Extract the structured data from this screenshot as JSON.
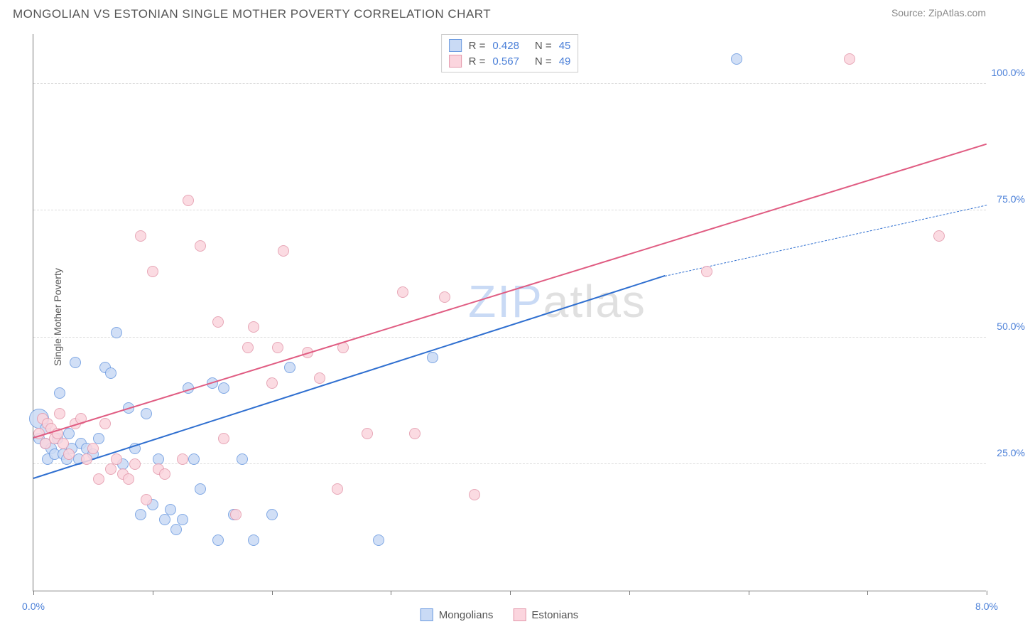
{
  "title": "MONGOLIAN VS ESTONIAN SINGLE MOTHER POVERTY CORRELATION CHART",
  "source": "Source: ZipAtlas.com",
  "ylabel": "Single Mother Poverty",
  "watermark_a": "ZIP",
  "watermark_b": "atlas",
  "watermark_color_a": "#c9daf5",
  "watermark_color_b": "#e0e0e0",
  "xlim": [
    0,
    8
  ],
  "ylim": [
    0,
    110
  ],
  "xticks": [
    0,
    1,
    2,
    3,
    4,
    5,
    6,
    7,
    8
  ],
  "xtick_labels": {
    "0": "0.0%",
    "8": "8.0%"
  },
  "ygrid": [
    25,
    50,
    75,
    100
  ],
  "ytick_labels": {
    "25": "25.0%",
    "50": "50.0%",
    "75": "75.0%",
    "100": "100.0%"
  },
  "series": [
    {
      "name": "Mongolians",
      "fill": "#c9daf5",
      "stroke": "#6b9ae0",
      "line_color": "#2f6fd0",
      "R": "0.428",
      "N": "45",
      "marker_radius": 8,
      "trend": {
        "x1": 0,
        "y1": 22,
        "x2": 5.3,
        "y2": 62,
        "dash_to_x": 8,
        "dash_to_y": 76
      },
      "points": [
        [
          0.05,
          30
        ],
        [
          0.05,
          34,
          14
        ],
        [
          0.1,
          29
        ],
        [
          0.1,
          32
        ],
        [
          0.12,
          26
        ],
        [
          0.15,
          28
        ],
        [
          0.18,
          27
        ],
        [
          0.2,
          30
        ],
        [
          0.22,
          39
        ],
        [
          0.25,
          27
        ],
        [
          0.28,
          26
        ],
        [
          0.3,
          31
        ],
        [
          0.32,
          28
        ],
        [
          0.35,
          45
        ],
        [
          0.38,
          26
        ],
        [
          0.4,
          29
        ],
        [
          0.45,
          28
        ],
        [
          0.5,
          27
        ],
        [
          0.55,
          30
        ],
        [
          0.6,
          44
        ],
        [
          0.65,
          43
        ],
        [
          0.7,
          51
        ],
        [
          0.75,
          25
        ],
        [
          0.8,
          36
        ],
        [
          0.85,
          28
        ],
        [
          0.9,
          15
        ],
        [
          0.95,
          35
        ],
        [
          1.0,
          17
        ],
        [
          1.05,
          26
        ],
        [
          1.1,
          14
        ],
        [
          1.15,
          16
        ],
        [
          1.2,
          12
        ],
        [
          1.25,
          14
        ],
        [
          1.3,
          40
        ],
        [
          1.35,
          26
        ],
        [
          1.4,
          20
        ],
        [
          1.5,
          41
        ],
        [
          1.55,
          10
        ],
        [
          1.6,
          40
        ],
        [
          1.68,
          15
        ],
        [
          1.75,
          26
        ],
        [
          1.85,
          10
        ],
        [
          2.0,
          15
        ],
        [
          2.15,
          44
        ],
        [
          2.9,
          10
        ],
        [
          3.35,
          46
        ],
        [
          5.9,
          105
        ]
      ]
    },
    {
      "name": "Estonians",
      "fill": "#fbd5de",
      "stroke": "#e398ab",
      "line_color": "#e05c82",
      "R": "0.567",
      "N": "49",
      "marker_radius": 8,
      "trend": {
        "x1": 0,
        "y1": 30,
        "x2": 8,
        "y2": 88
      },
      "points": [
        [
          0.05,
          31
        ],
        [
          0.08,
          34
        ],
        [
          0.1,
          29
        ],
        [
          0.12,
          33
        ],
        [
          0.15,
          32
        ],
        [
          0.18,
          30
        ],
        [
          0.2,
          31
        ],
        [
          0.22,
          35
        ],
        [
          0.25,
          29
        ],
        [
          0.3,
          27
        ],
        [
          0.35,
          33
        ],
        [
          0.4,
          34
        ],
        [
          0.45,
          26
        ],
        [
          0.5,
          28
        ],
        [
          0.55,
          22
        ],
        [
          0.6,
          33
        ],
        [
          0.65,
          24
        ],
        [
          0.7,
          26
        ],
        [
          0.75,
          23
        ],
        [
          0.8,
          22
        ],
        [
          0.85,
          25
        ],
        [
          0.9,
          70
        ],
        [
          0.95,
          18
        ],
        [
          1.0,
          63
        ],
        [
          1.05,
          24
        ],
        [
          1.1,
          23
        ],
        [
          1.25,
          26
        ],
        [
          1.3,
          77
        ],
        [
          1.4,
          68
        ],
        [
          1.55,
          53
        ],
        [
          1.6,
          30
        ],
        [
          1.7,
          15
        ],
        [
          1.8,
          48
        ],
        [
          1.85,
          52
        ],
        [
          2.0,
          41
        ],
        [
          2.05,
          48
        ],
        [
          2.1,
          67
        ],
        [
          2.3,
          47
        ],
        [
          2.4,
          42
        ],
        [
          2.55,
          20
        ],
        [
          2.6,
          48
        ],
        [
          2.8,
          31
        ],
        [
          3.1,
          59
        ],
        [
          3.2,
          31
        ],
        [
          3.45,
          58
        ],
        [
          3.7,
          19
        ],
        [
          5.65,
          63
        ],
        [
          6.85,
          105
        ],
        [
          7.6,
          70
        ]
      ]
    }
  ]
}
